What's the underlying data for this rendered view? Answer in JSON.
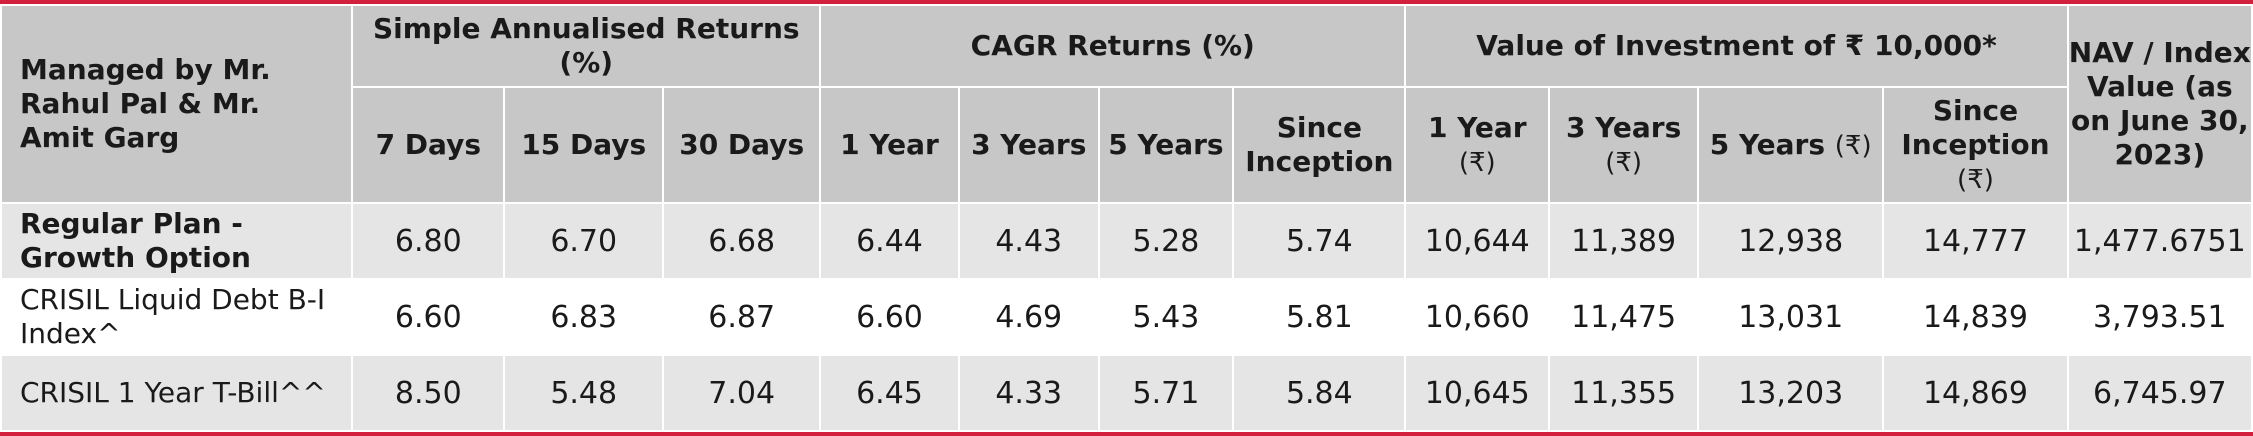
{
  "header": {
    "corner_label": "Managed by Mr. Rahul Pal & Mr. Amit Garg",
    "groups": {
      "simple": "Simple Annualised Returns (%)",
      "cagr": "CAGR Returns (%)",
      "value": "Value of Investment of ₹ 10,000*",
      "nav": "NAV / Index Value (as on June 30, 2023)"
    },
    "simple_cols": [
      "7 Days",
      "15 Days",
      "30 Days"
    ],
    "cagr_cols": [
      "1 Year",
      "3 Years",
      "5 Years",
      "Since Inception"
    ],
    "value_cols": [
      {
        "label": "1 Year",
        "unit": "(₹)"
      },
      {
        "label": "3 Years",
        "unit": "(₹)"
      },
      {
        "label": "5 Years",
        "unit": "(₹)"
      },
      {
        "label": "Since Inception",
        "unit": "(₹)"
      }
    ]
  },
  "rows": [
    {
      "label": "Regular Plan - Growth Option",
      "values": [
        "6.80",
        "6.70",
        "6.68",
        "6.44",
        "4.43",
        "5.28",
        "5.74",
        "10,644",
        "11,389",
        "12,938",
        "14,777",
        "1,477.6751"
      ]
    },
    {
      "label": "CRISIL Liquid Debt B-I Index^",
      "values": [
        "6.60",
        "6.83",
        "6.87",
        "6.60",
        "4.69",
        "5.43",
        "5.81",
        "10,660",
        "11,475",
        "13,031",
        "14,839",
        "3,793.51"
      ]
    },
    {
      "label": "CRISIL 1 Year T-Bill^^",
      "values": [
        "8.50",
        "5.48",
        "7.04",
        "6.45",
        "4.33",
        "5.71",
        "5.84",
        "10,645",
        "11,355",
        "13,203",
        "14,869",
        "6,745.97"
      ]
    }
  ],
  "colors": {
    "header_bg": "#c7c7c7",
    "row_alt_bg": "#e5e5e5",
    "accent_border": "#d3213d"
  }
}
